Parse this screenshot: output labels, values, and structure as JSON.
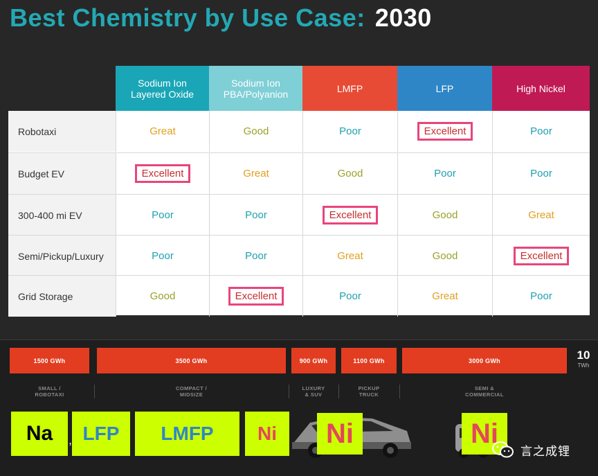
{
  "title": {
    "main": "Best Chemistry by Use Case:",
    "year": "2030"
  },
  "table": {
    "columns": [
      {
        "label": "Sodium Ion\nLayered Oxide",
        "color": "#1aa6b7"
      },
      {
        "label": "Sodium Ion\nPBA/Polyanion",
        "color": "#7fcfd6"
      },
      {
        "label": "LMFP",
        "color": "#e84b35"
      },
      {
        "label": "LFP",
        "color": "#2f86c6"
      },
      {
        "label": "High Nickel",
        "color": "#c01a55"
      }
    ],
    "rows": [
      {
        "label": "Robotaxi",
        "values": [
          "Great",
          "Good",
          "Poor",
          "Excellent",
          "Poor"
        ]
      },
      {
        "label": "Budget EV",
        "values": [
          "Excellent",
          "Great",
          "Good",
          "Poor",
          "Poor"
        ]
      },
      {
        "label": "300-400 mi EV",
        "values": [
          "Poor",
          "Poor",
          "Excellent",
          "Good",
          "Great"
        ]
      },
      {
        "label": "Semi/Pickup/Luxury",
        "values": [
          "Poor",
          "Poor",
          "Great",
          "Good",
          "Excellent"
        ]
      },
      {
        "label": "Grid Storage",
        "values": [
          "Good",
          "Excellent",
          "Poor",
          "Great",
          "Poor"
        ]
      }
    ]
  },
  "demand": {
    "segments": [
      {
        "value": "1500 GWh",
        "label": "SMALL /\nROBOTAXI"
      },
      {
        "value": "3500 GWh",
        "label": "COMPACT /\nMIDSIZE"
      },
      {
        "value": "900 GWh",
        "label": "LUXURY\n& SUV"
      },
      {
        "value": "1100 GWh",
        "label": "PICKUP\nTRUCK"
      },
      {
        "value": "3000 GWh",
        "label": "SEMI &\nCOMMERCIAL"
      }
    ],
    "total_value": "10",
    "total_unit": "TWh"
  },
  "chemistry_tags": [
    "Na",
    "LFP",
    "LMFP",
    "Ni",
    "Ni",
    "Ni"
  ],
  "watermark": {
    "text": "言之成锂",
    "icon": "wechat-icon"
  }
}
